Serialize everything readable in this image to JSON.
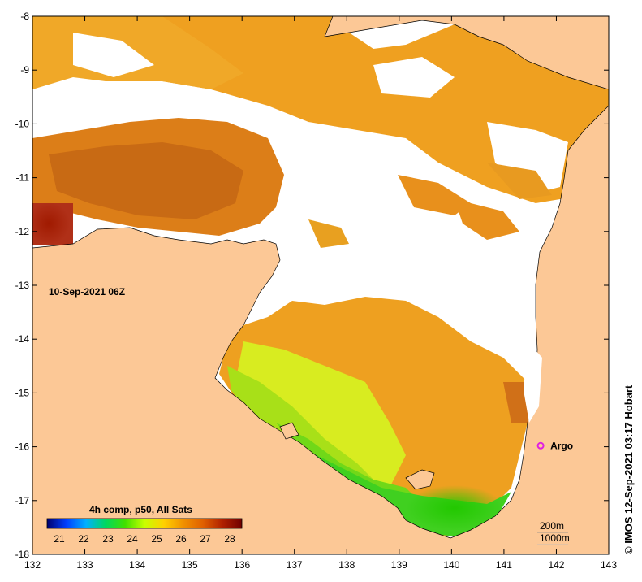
{
  "map": {
    "date_label": "10-Sep-2021 06Z",
    "colorbar_title": "4h comp, p50, All Sats",
    "colorbar_ticks": [
      "21",
      "22",
      "23",
      "24",
      "25",
      "26",
      "27",
      "28"
    ],
    "colorbar_range": [
      20.5,
      28.5
    ],
    "colorbar_colors": [
      "#00006e",
      "#0040ff",
      "#00b0ff",
      "#00d860",
      "#40e000",
      "#c8ff00",
      "#ffd000",
      "#f09000",
      "#e06000",
      "#b02000",
      "#700000"
    ],
    "x_ticks": [
      "132",
      "133",
      "134",
      "135",
      "136",
      "137",
      "138",
      "139",
      "140",
      "141",
      "142",
      "143"
    ],
    "y_ticks": [
      "-8",
      "-9",
      "-10",
      "-11",
      "-12",
      "-13",
      "-14",
      "-15",
      "-16",
      "-17",
      "-18"
    ],
    "lon_range": [
      132,
      143
    ],
    "lat_range": [
      -18,
      -8
    ],
    "marker": {
      "label": "Argo",
      "lon": 141.7,
      "lat": -15.98,
      "color": "#e020e0"
    },
    "isobaths": [
      "200m",
      "1000m"
    ],
    "credit": "© IMOS 12-Sep-2021 03:17 Hobart",
    "colors": {
      "land": "#fcc896",
      "cloud": "#ffffff",
      "sst_green": "#40d020",
      "sst_yellow": "#d8f000",
      "sst_orange": "#f0a010",
      "sst_dark": "#c06000",
      "sst_hot": "#a02000"
    }
  }
}
